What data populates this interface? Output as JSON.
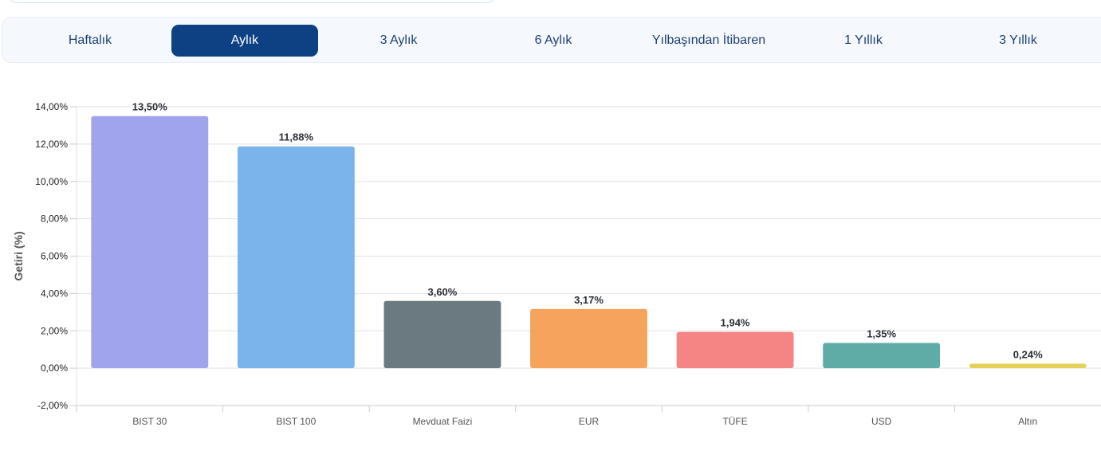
{
  "tabs": [
    {
      "label": "Haftalık",
      "active": false
    },
    {
      "label": "Aylık",
      "active": true
    },
    {
      "label": "3 Aylık",
      "active": false
    },
    {
      "label": "6 Aylık",
      "active": false
    },
    {
      "label": "Yılbaşından İtibaren",
      "active": false
    },
    {
      "label": "1 Yıllık",
      "active": false
    },
    {
      "label": "3 Yıllık",
      "active": false
    }
  ],
  "chart_data": {
    "type": "bar",
    "ylabel": "Getiri (%)",
    "ylim": [
      -2,
      14
    ],
    "yticks": [
      -2,
      0,
      2,
      4,
      6,
      8,
      10,
      12,
      14
    ],
    "ytick_labels": [
      "-2,00%",
      "0,00%",
      "2,00%",
      "4,00%",
      "6,00%",
      "8,00%",
      "10,00%",
      "12,00%",
      "14,00%"
    ],
    "grid": true,
    "categories": [
      "BIST 30",
      "BIST 100",
      "Mevduat Faizi",
      "EUR",
      "TÜFE",
      "USD",
      "Altın"
    ],
    "values": [
      13.5,
      11.88,
      3.6,
      3.17,
      1.94,
      1.35,
      0.24
    ],
    "value_labels": [
      "13,50%",
      "11,88%",
      "3,60%",
      "3,17%",
      "1,94%",
      "1,35%",
      "0,24%"
    ],
    "colors": [
      "#a0a4ed",
      "#7bb4eb",
      "#6a7a80",
      "#f6a35c",
      "#f58585",
      "#5faca7",
      "#e5d15a"
    ]
  }
}
